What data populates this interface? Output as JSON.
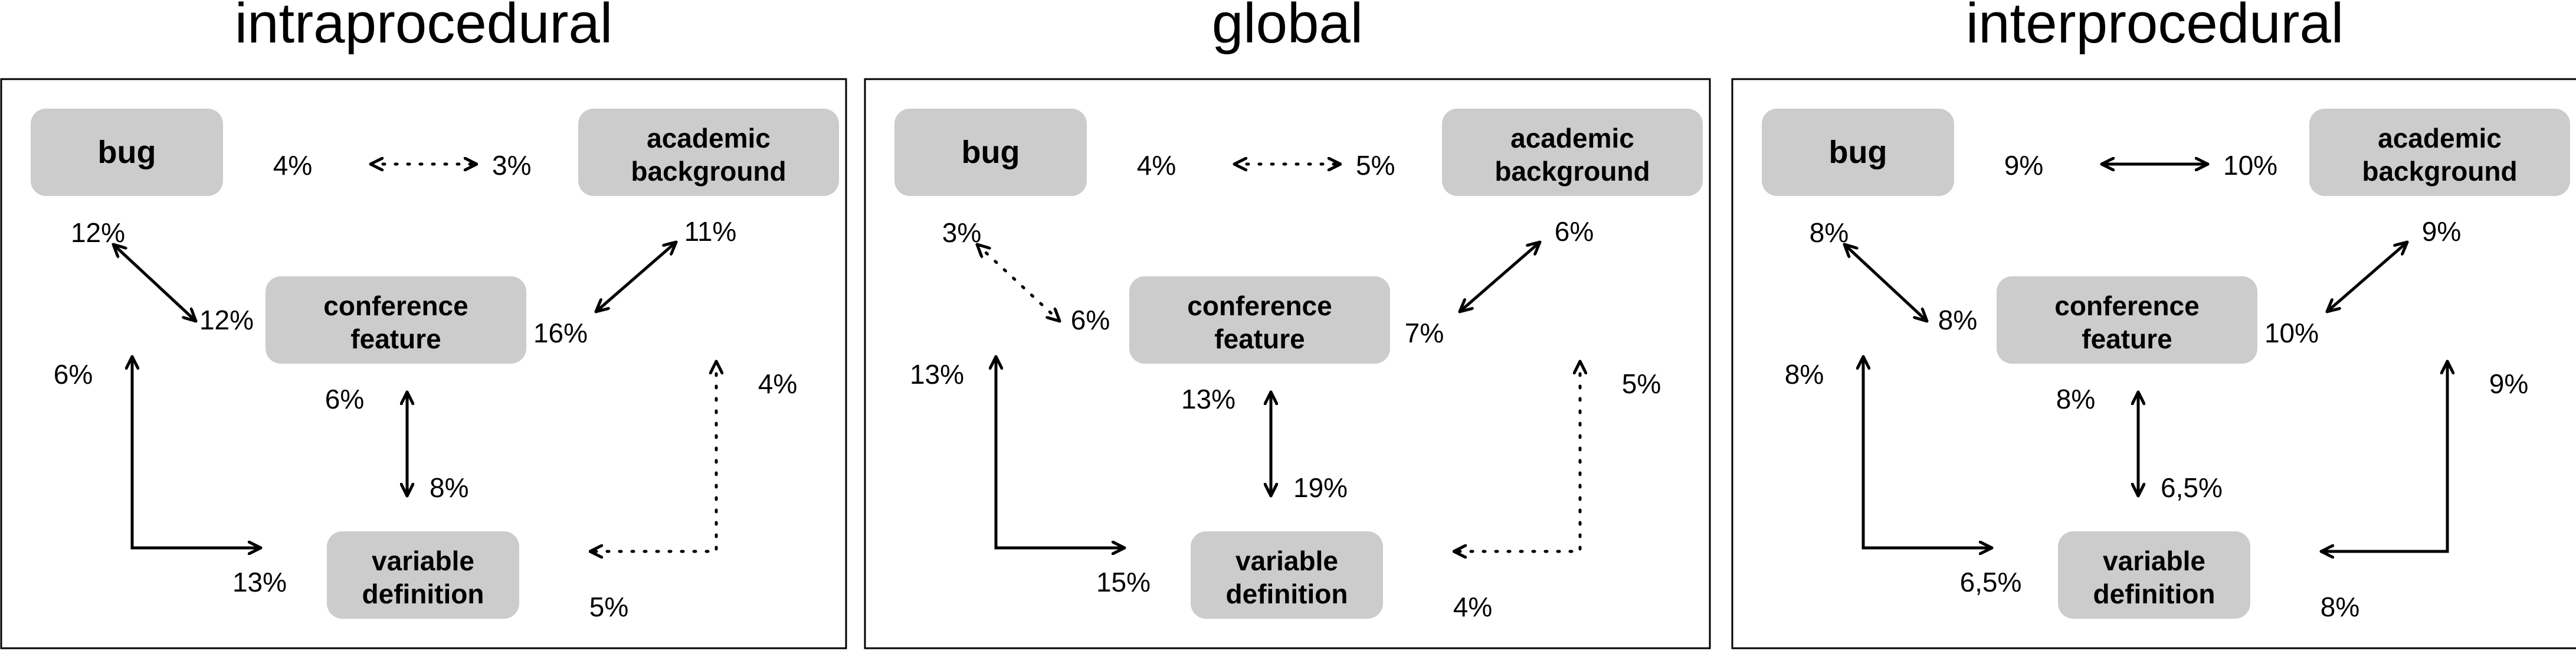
{
  "nodes": {
    "bug": "bug",
    "academic_line1": "academic",
    "academic_line2": "background",
    "conference_line1": "conference",
    "conference_line2": "feature",
    "variable_line1": "variable",
    "variable_line2": "definition"
  },
  "panels": [
    {
      "id": "intraprocedural",
      "title": "intraprocedural",
      "top_left": "4%",
      "top_right": "3%",
      "top_style": "dotted",
      "bc_bug": "12%",
      "bc_conf": "12%",
      "bc_style": "solid",
      "ac_acad": "11%",
      "ac_conf": "16%",
      "ac_style": "solid",
      "bv_bug": "6%",
      "bv_var": "13%",
      "bv_style": "solid",
      "cv_conf": "6%",
      "cv_var": "8%",
      "cv_style": "solid",
      "av_acad": "4%",
      "av_var": "5%",
      "av_style": "dotted"
    },
    {
      "id": "global",
      "title": "global",
      "top_left": "4%",
      "top_right": "5%",
      "top_style": "dotted",
      "bc_bug": "3%",
      "bc_conf": "6%",
      "bc_style": "dotted",
      "ac_acad": "6%",
      "ac_conf": "7%",
      "ac_style": "solid",
      "bv_bug": "13%",
      "bv_var": "15%",
      "bv_style": "solid",
      "cv_conf": "13%",
      "cv_var": "19%",
      "cv_style": "solid",
      "av_acad": "5%",
      "av_var": "4%",
      "av_style": "dotted"
    },
    {
      "id": "interprocedural",
      "title": "interprocedural",
      "top_left": "9%",
      "top_right": "10%",
      "top_style": "solid",
      "bc_bug": "8%",
      "bc_conf": "8%",
      "bc_style": "solid",
      "ac_acad": "9%",
      "ac_conf": "10%",
      "ac_style": "solid",
      "bv_bug": "8%",
      "bv_var": "6,5%",
      "bv_style": "solid",
      "cv_conf": "8%",
      "cv_var": "6,5%",
      "cv_style": "solid",
      "av_acad": "9%",
      "av_var": "8%",
      "av_style": "solid"
    }
  ]
}
